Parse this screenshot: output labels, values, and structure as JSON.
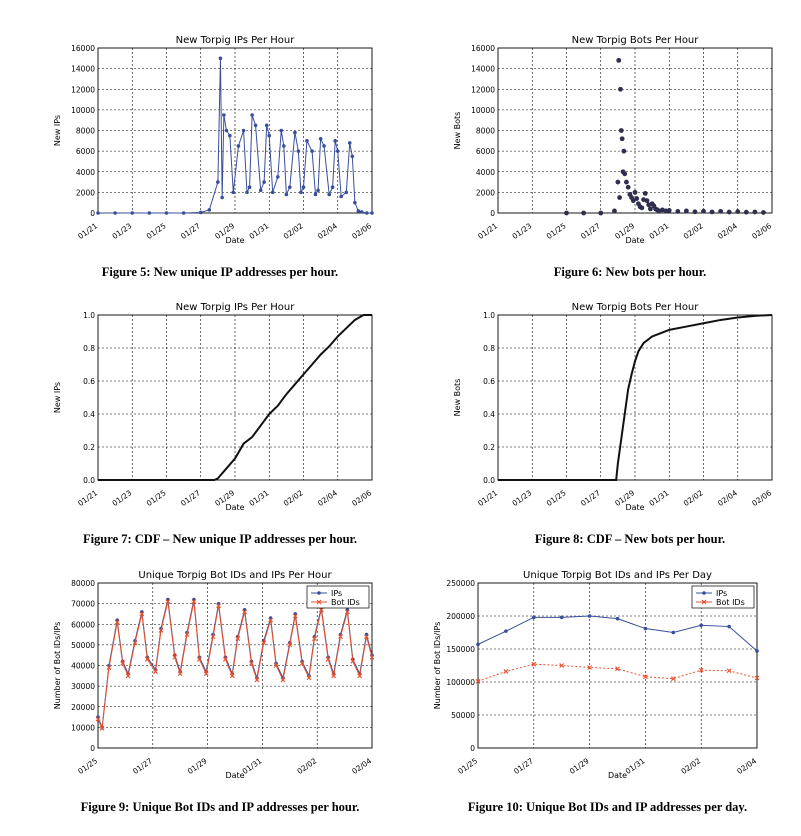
{
  "chart_data": [
    {
      "id": "fig5",
      "type": "line",
      "title": "New Torpig IPs Per Hour",
      "xlabel": "Date",
      "ylabel": "New IPs",
      "xticks": [
        "01/21",
        "01/23",
        "01/25",
        "01/27",
        "01/29",
        "01/31",
        "02/02",
        "02/04",
        "02/06"
      ],
      "yticks": [
        "0",
        "2000",
        "4000",
        "6000",
        "8000",
        "10000",
        "12000",
        "14000",
        "16000"
      ],
      "xlim": [
        0,
        16
      ],
      "ylim": [
        0,
        16000
      ],
      "grid": true,
      "color": "#3a4f9a",
      "marker": "dot",
      "series": [
        {
          "x": [
            0,
            1,
            2,
            3,
            4,
            5,
            6,
            6.5,
            7,
            7.15,
            7.25,
            7.35,
            7.5,
            7.7,
            7.9,
            8.2,
            8.5,
            8.7,
            8.85,
            9,
            9.2,
            9.5,
            9.7,
            9.85,
            10,
            10.2,
            10.5,
            10.7,
            10.85,
            11,
            11.2,
            11.5,
            11.7,
            11.85,
            12,
            12.2,
            12.5,
            12.7,
            12.85,
            13,
            13.2,
            13.5,
            13.7,
            13.85,
            14,
            14.2,
            14.5,
            14.7,
            14.85,
            15,
            15.2,
            15.4,
            15.7,
            16
          ],
          "y": [
            0,
            0,
            0,
            0,
            0,
            0,
            50,
            300,
            3000,
            15000,
            1500,
            9500,
            8000,
            7500,
            2000,
            6500,
            8000,
            2000,
            2500,
            9500,
            8500,
            2200,
            3000,
            8500,
            7500,
            2000,
            3500,
            8000,
            6500,
            1800,
            2500,
            7800,
            6000,
            2000,
            2500,
            7000,
            6000,
            1800,
            2200,
            7200,
            6500,
            1800,
            2500,
            7000,
            6000,
            1600,
            2000,
            6800,
            5500,
            1000,
            200,
            100,
            0,
            0
          ]
        }
      ]
    },
    {
      "id": "fig6",
      "type": "scatter",
      "title": "New Torpig Bots Per Hour",
      "xlabel": "Date",
      "ylabel": "New Bots",
      "xticks": [
        "01/21",
        "01/23",
        "01/25",
        "01/27",
        "01/29",
        "01/31",
        "02/02",
        "02/04",
        "02/06"
      ],
      "yticks": [
        "0",
        "2000",
        "4000",
        "6000",
        "8000",
        "10000",
        "12000",
        "14000",
        "16000"
      ],
      "xlim": [
        0,
        16
      ],
      "ylim": [
        0,
        16000
      ],
      "grid": true,
      "color": "#2e2e4e",
      "series": [
        {
          "x": [
            4,
            5,
            6,
            6.8,
            7,
            7.05,
            7.1,
            7.15,
            7.2,
            7.25,
            7.3,
            7.35,
            7.4,
            7.5,
            7.6,
            7.7,
            7.8,
            7.9,
            8,
            8.1,
            8.2,
            8.3,
            8.4,
            8.5,
            8.6,
            8.7,
            8.8,
            8.9,
            9,
            9.1,
            9.2,
            9.3,
            9.4,
            9.6,
            9.8,
            10,
            10.5,
            11,
            11.5,
            12,
            12.5,
            13,
            13.5,
            14,
            14.5,
            15,
            15.5
          ],
          "y": [
            0,
            0,
            0,
            200,
            3000,
            14800,
            1500,
            12000,
            8000,
            7200,
            4000,
            6000,
            3800,
            3000,
            2500,
            1800,
            1500,
            1200,
            2000,
            1400,
            900,
            600,
            500,
            1300,
            1900,
            1200,
            800,
            400,
            900,
            700,
            400,
            300,
            200,
            300,
            200,
            250,
            150,
            200,
            120,
            180,
            100,
            160,
            90,
            140,
            80,
            100,
            50
          ]
        }
      ]
    },
    {
      "id": "fig7",
      "type": "line",
      "title": "New Torpig IPs Per Hour",
      "xlabel": "Date",
      "ylabel": "New IPs",
      "xticks": [
        "01/21",
        "01/23",
        "01/25",
        "01/27",
        "01/29",
        "01/31",
        "02/02",
        "02/04",
        "02/06"
      ],
      "yticks": [
        "0.0",
        "0.2",
        "0.4",
        "0.6",
        "0.8",
        "1.0"
      ],
      "xlim": [
        0,
        16
      ],
      "ylim": [
        0,
        1
      ],
      "grid": true,
      "color": "#111111",
      "series": [
        {
          "x": [
            0,
            4,
            6,
            6.8,
            7,
            7.5,
            8,
            8.5,
            9,
            9.5,
            10,
            10.5,
            11,
            11.5,
            12,
            12.5,
            13,
            13.5,
            14,
            14.5,
            15,
            15.5,
            16
          ],
          "y": [
            0,
            0,
            0,
            0,
            0.01,
            0.07,
            0.13,
            0.22,
            0.26,
            0.33,
            0.4,
            0.45,
            0.52,
            0.58,
            0.64,
            0.7,
            0.76,
            0.81,
            0.87,
            0.92,
            0.97,
            1.0,
            1.0
          ]
        }
      ]
    },
    {
      "id": "fig8",
      "type": "line",
      "title": "New Torpig Bots Per Hour",
      "xlabel": "Date",
      "ylabel": "New Bots",
      "xticks": [
        "01/21",
        "01/23",
        "01/25",
        "01/27",
        "01/29",
        "01/31",
        "02/02",
        "02/04",
        "02/06"
      ],
      "yticks": [
        "0.0",
        "0.2",
        "0.4",
        "0.6",
        "0.8",
        "1.0"
      ],
      "xlim": [
        0,
        16
      ],
      "ylim": [
        0,
        1
      ],
      "grid": true,
      "color": "#111111",
      "series": [
        {
          "x": [
            0,
            4,
            6,
            6.9,
            7,
            7.2,
            7.4,
            7.6,
            7.8,
            8,
            8.2,
            8.5,
            9,
            9.5,
            10,
            11,
            12,
            13,
            14,
            15,
            16
          ],
          "y": [
            0,
            0,
            0,
            0,
            0.1,
            0.25,
            0.4,
            0.55,
            0.64,
            0.72,
            0.78,
            0.83,
            0.87,
            0.89,
            0.91,
            0.93,
            0.95,
            0.97,
            0.985,
            0.995,
            1.0
          ]
        }
      ]
    },
    {
      "id": "fig9",
      "type": "line",
      "title": "Unique Torpig Bot IDs and IPs Per Hour",
      "xlabel": "Date",
      "ylabel": "Number of Bot IDs/IPs",
      "xticks": [
        "01/25",
        "01/27",
        "01/29",
        "01/31",
        "02/02",
        "02/04"
      ],
      "yticks": [
        "0",
        "10000",
        "20000",
        "30000",
        "40000",
        "50000",
        "60000",
        "70000",
        "80000"
      ],
      "xlim": [
        0,
        10
      ],
      "ylim": [
        0,
        80000
      ],
      "grid": true,
      "legend": "top-right",
      "series": [
        {
          "name": "IPs",
          "color": "#3a4f9a",
          "marker": "dot",
          "x": [
            0,
            0.15,
            0.4,
            0.7,
            0.9,
            1.1,
            1.35,
            1.6,
            1.8,
            2.1,
            2.3,
            2.55,
            2.8,
            3,
            3.25,
            3.5,
            3.7,
            3.95,
            4.2,
            4.4,
            4.65,
            4.9,
            5.1,
            5.35,
            5.6,
            5.8,
            6.05,
            6.3,
            6.5,
            6.75,
            7,
            7.2,
            7.45,
            7.7,
            7.9,
            8.15,
            8.4,
            8.6,
            8.85,
            9.1,
            9.3,
            9.55,
            9.8,
            10
          ],
          "y": [
            15000,
            10000,
            40000,
            62000,
            42000,
            36000,
            52000,
            66000,
            44000,
            38000,
            58000,
            72000,
            45000,
            37000,
            56000,
            72000,
            44000,
            37000,
            55000,
            70000,
            44000,
            36000,
            54000,
            67000,
            42000,
            34000,
            52000,
            63000,
            41000,
            34000,
            51000,
            65000,
            42000,
            35000,
            54000,
            68000,
            44000,
            36000,
            55000,
            67000,
            43000,
            36000,
            55000,
            45000
          ]
        },
        {
          "name": "Bot IDs",
          "color": "#e5522f",
          "marker": "x",
          "x": [
            0,
            0.15,
            0.4,
            0.7,
            0.9,
            1.1,
            1.35,
            1.6,
            1.8,
            2.1,
            2.3,
            2.55,
            2.8,
            3,
            3.25,
            3.5,
            3.7,
            3.95,
            4.2,
            4.4,
            4.65,
            4.9,
            5.1,
            5.35,
            5.6,
            5.8,
            6.05,
            6.3,
            6.5,
            6.75,
            7,
            7.2,
            7.45,
            7.7,
            7.9,
            8.15,
            8.4,
            8.6,
            8.85,
            9.1,
            9.3,
            9.55,
            9.8,
            10
          ],
          "y": [
            14000,
            9500,
            39000,
            61000,
            41000,
            35000,
            51000,
            65000,
            43000,
            37000,
            57000,
            71000,
            44000,
            36000,
            55000,
            71000,
            43000,
            36000,
            54000,
            69000,
            43000,
            35000,
            53000,
            66000,
            41000,
            33000,
            51000,
            62000,
            40000,
            33000,
            50000,
            64000,
            41000,
            34000,
            53000,
            67000,
            43000,
            35000,
            54000,
            66000,
            42000,
            35000,
            54000,
            44000
          ]
        }
      ]
    },
    {
      "id": "fig10",
      "type": "line",
      "title": "Unique Torpig Bot IDs and IPs Per Day",
      "xlabel": "Date",
      "ylabel": "Number of Bot IDs/IPs",
      "xticks": [
        "01/25",
        "01/27",
        "01/29",
        "01/31",
        "02/02",
        "02/04"
      ],
      "yticks": [
        "0",
        "50000",
        "100000",
        "150000",
        "200000",
        "250000"
      ],
      "xlim": [
        0,
        10
      ],
      "ylim": [
        0,
        250000
      ],
      "grid": true,
      "legend": "top-right",
      "series": [
        {
          "name": "IPs",
          "color": "#3a4f9a",
          "marker": "dot",
          "x": [
            0,
            1,
            2,
            3,
            4,
            5,
            6,
            7,
            8,
            9,
            10
          ],
          "y": [
            157000,
            177000,
            198000,
            198000,
            200000,
            196000,
            181000,
            175000,
            186000,
            184000,
            147000
          ]
        },
        {
          "name": "Bot IDs",
          "color": "#e5522f",
          "marker": "x",
          "x": [
            0,
            1,
            2,
            3,
            4,
            5,
            6,
            7,
            8,
            9,
            10
          ],
          "y": [
            101000,
            116000,
            127000,
            125000,
            122000,
            120000,
            108000,
            105000,
            118000,
            117000,
            106000
          ]
        }
      ]
    }
  ],
  "captions": {
    "fig5": "Figure 5: New unique IP addresses per hour.",
    "fig6": "Figure 6: New bots per hour.",
    "fig7": "Figure 7: CDF – New unique IP addresses per hour.",
    "fig8": "Figure 8: CDF – New bots per hour.",
    "fig9": "Figure 9: Unique Bot IDs and IP addresses per hour.",
    "fig10": "Figure 10: Unique Bot IDs and IP addresses per day."
  }
}
